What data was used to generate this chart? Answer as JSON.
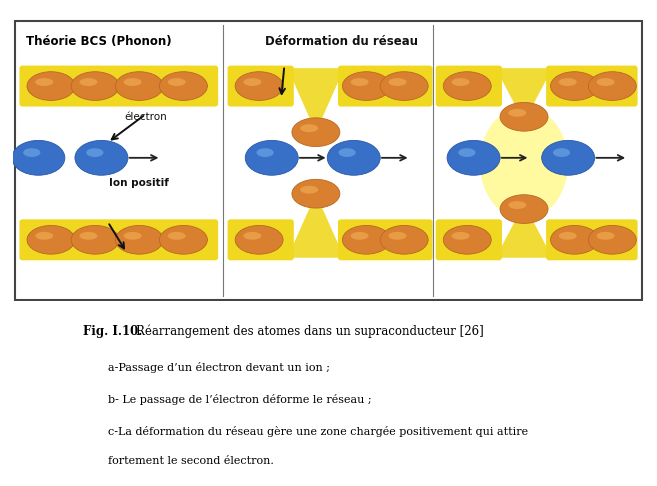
{
  "title_bold": "Fig. I.10.",
  "caption": "Réarrangement des atomes dans un supraconducteur [26]",
  "line1": "a-Passage d’un électron devant un ion ;",
  "line2": "b- Le passage de l’électron déforme le réseau ;",
  "line3": "c-La déformation du réseau gère une zone chargée positivement qui attire",
  "line4": "fortement le second électron.",
  "label_bcs": "Théorie BCS (Phonon)",
  "label_deformation": "Déformation du réseau",
  "label_electron": "électron",
  "label_ion": "Ion positif",
  "orange_dark": "#b86820",
  "orange_mid": "#d88030",
  "orange_light": "#f0a850",
  "blue_dark": "#2858a8",
  "blue_mid": "#3870c8",
  "blue_light": "#70a8e8",
  "yellow_band": "#f0d820",
  "yellow_glow": "#fff880",
  "box_bg": "#ffffff",
  "fig_bg": "#ffffff",
  "text_color": "#000000",
  "border_color": "#444444"
}
